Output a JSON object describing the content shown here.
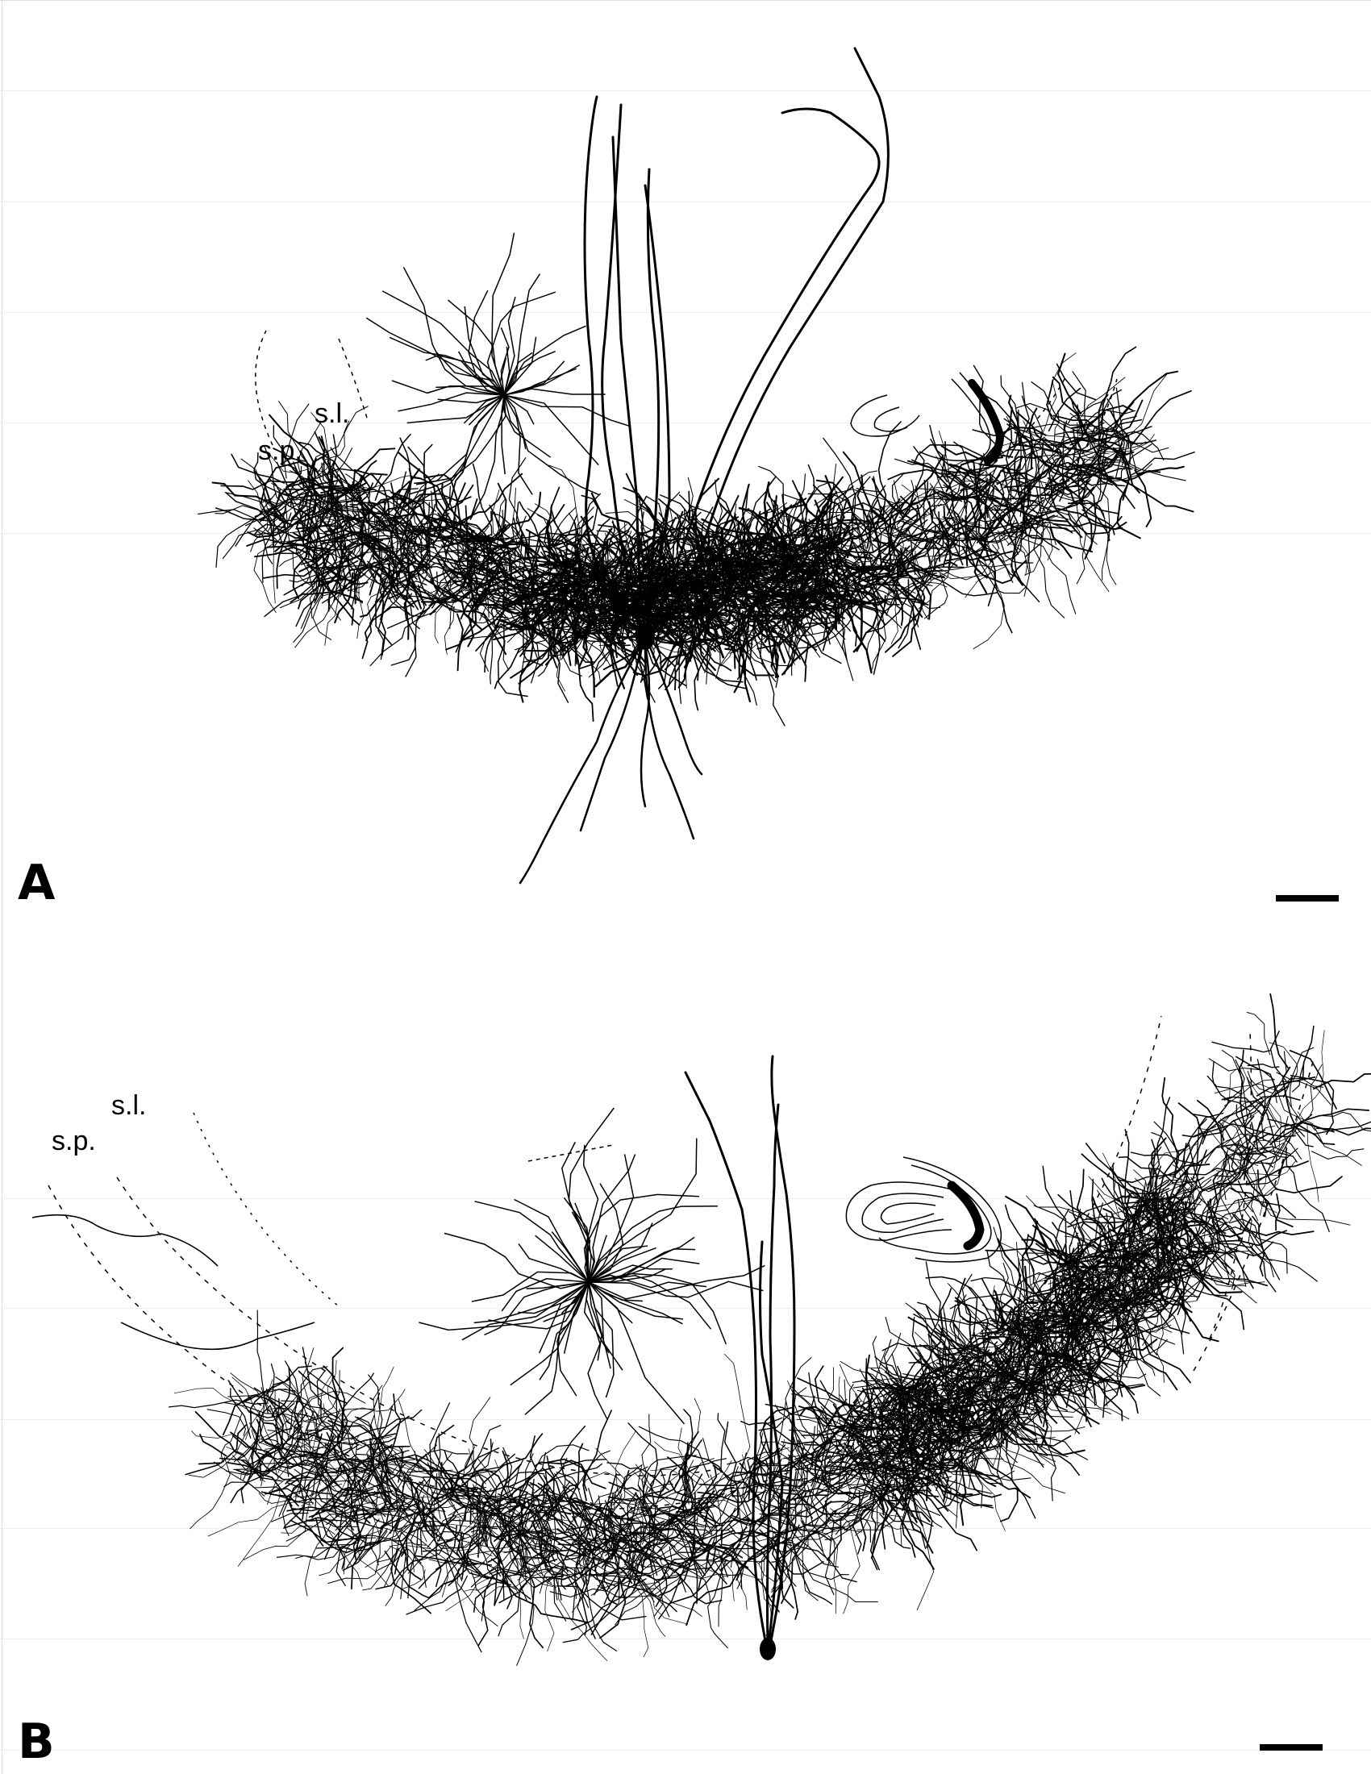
{
  "figure": {
    "panels": [
      {
        "letter": "A",
        "layer_labels": {
          "lacunosum": "s.l.",
          "pyramidale": "s.p."
        }
      },
      {
        "letter": "B",
        "layer_labels": {
          "lacunosum": "s.l.",
          "pyramidale": "s.p."
        }
      }
    ]
  }
}
